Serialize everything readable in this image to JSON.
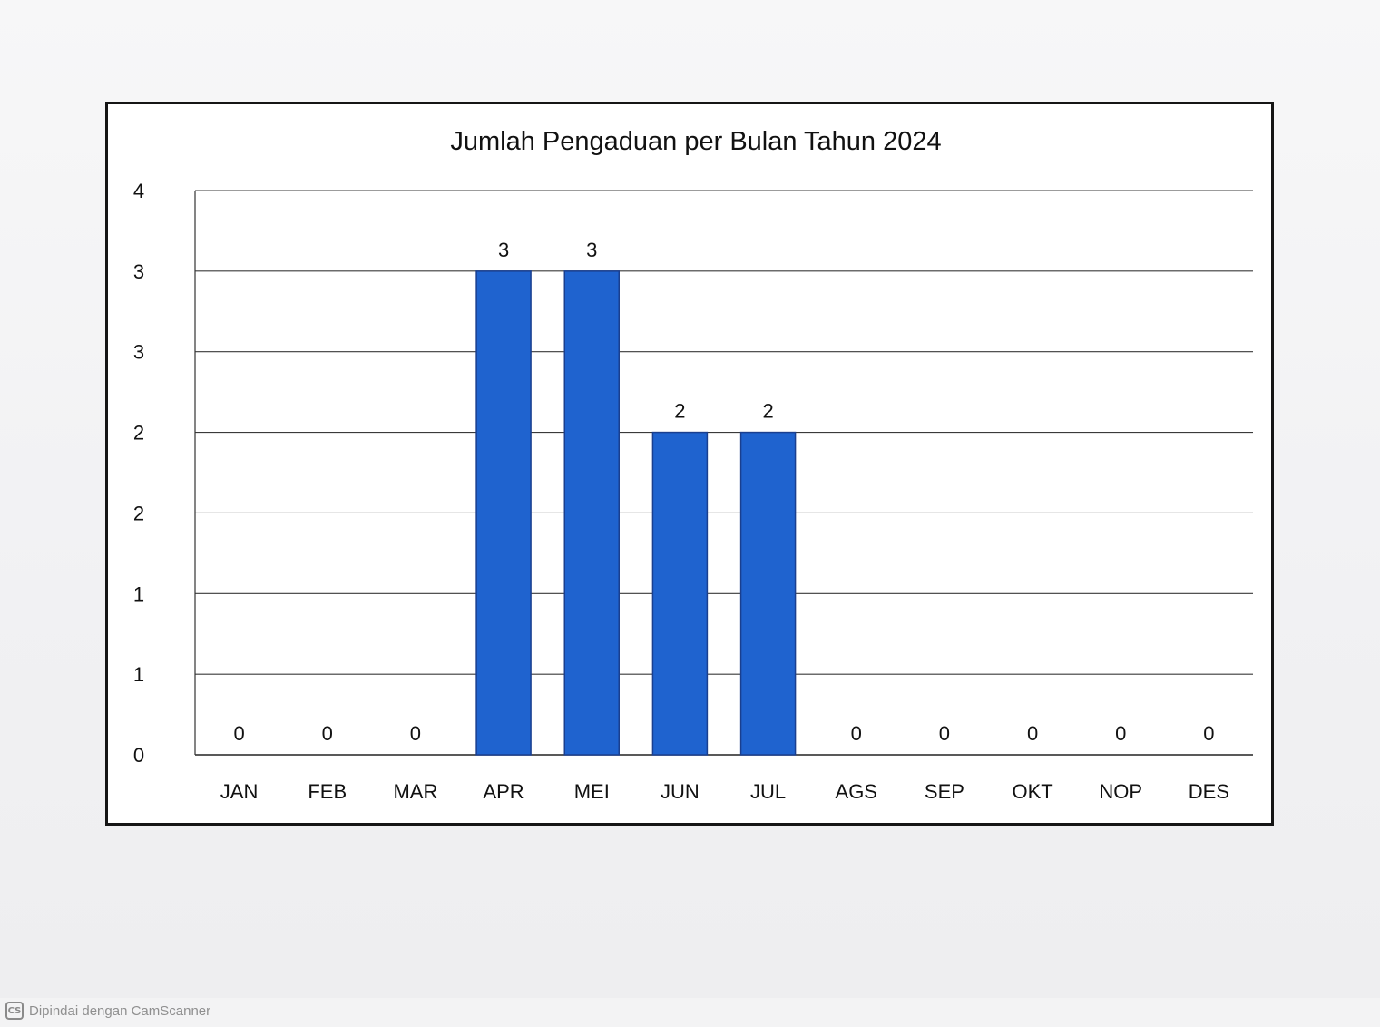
{
  "chart_data": {
    "type": "bar",
    "title": "Jumlah Pengaduan per Bulan Tahun 2024",
    "categories": [
      "JAN",
      "FEB",
      "MAR",
      "APR",
      "MEI",
      "JUN",
      "JUL",
      "AGS",
      "SEP",
      "OKT",
      "NOP",
      "DES"
    ],
    "values": [
      0,
      0,
      0,
      3,
      3,
      2,
      2,
      0,
      0,
      0,
      0,
      0
    ],
    "data_labels": [
      "0",
      "0",
      "0",
      "3",
      "3",
      "2",
      "2",
      "0",
      "0",
      "0",
      "0",
      "0"
    ],
    "ylim": [
      0,
      3.5
    ],
    "yticks": [
      0,
      0.5,
      1,
      1.5,
      2,
      2.5,
      3,
      3.5
    ],
    "ytick_labels": [
      "0",
      "1",
      "1",
      "2",
      "2",
      "3",
      "3",
      "4"
    ],
    "xlabel": "",
    "ylabel": "",
    "grid": true,
    "legend": "none",
    "bar_color": "#1f63cf",
    "bar_edge_color": "#1a3f8f"
  },
  "watermark": {
    "logo": "CS",
    "text": "Dipindai dengan CamScanner"
  }
}
